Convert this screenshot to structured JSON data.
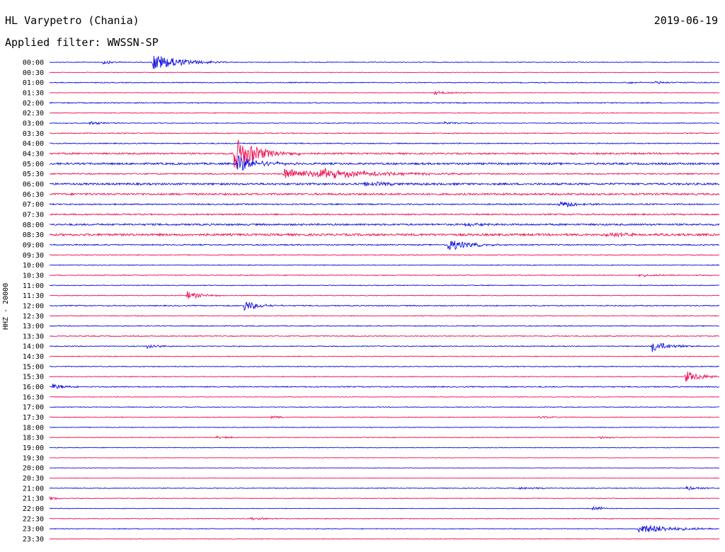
{
  "header": {
    "station": "HL Varypetro (Chania)",
    "date": "2019-06-19",
    "filter": "Applied filter: WWSSN-SP"
  },
  "chart_data": {
    "type": "line",
    "title": "HL Varypetro (Chania)",
    "subtitle": "Applied filter: WWSSN-SP",
    "ylabel": "HHZ - 20000",
    "row_interval_minutes": 30,
    "colors": [
      "#1010e0",
      "#ee1155"
    ],
    "rows": [
      {
        "label": "00:00",
        "noise": 1.0,
        "events": [
          {
            "t": 0.08,
            "amp": 3,
            "dur": 0.015
          },
          {
            "t": 0.155,
            "amp": 12,
            "dur": 0.04
          }
        ]
      },
      {
        "label": "00:30",
        "noise": 0.7,
        "events": []
      },
      {
        "label": "01:00",
        "noise": 1.2,
        "events": [
          {
            "t": 0.86,
            "amp": 1.5,
            "dur": 0.015
          },
          {
            "t": 0.905,
            "amp": 2,
            "dur": 0.03
          }
        ]
      },
      {
        "label": "01:30",
        "noise": 0.8,
        "events": [
          {
            "t": 0.575,
            "amp": 2.5,
            "dur": 0.03
          }
        ]
      },
      {
        "label": "02:00",
        "noise": 1.3,
        "events": []
      },
      {
        "label": "02:30",
        "noise": 0.9,
        "events": []
      },
      {
        "label": "03:00",
        "noise": 1.0,
        "events": [
          {
            "t": 0.06,
            "amp": 2.5,
            "dur": 0.02
          },
          {
            "t": 0.59,
            "amp": 2,
            "dur": 0.02
          }
        ]
      },
      {
        "label": "03:30",
        "noise": 1.3,
        "events": []
      },
      {
        "label": "04:00",
        "noise": 1.4,
        "events": []
      },
      {
        "label": "04:30",
        "noise": 2.2,
        "events": [
          {
            "t": 0.275,
            "amp": 24,
            "dur": 0.035
          }
        ]
      },
      {
        "label": "05:00",
        "noise": 2.6,
        "events": [
          {
            "t": 0.28,
            "amp": 13,
            "dur": 0.03
          }
        ]
      },
      {
        "label": "05:30",
        "noise": 1.7,
        "events": [
          {
            "t": 0.35,
            "amp": 8,
            "dur": 0.06
          },
          {
            "t": 0.4,
            "amp": 7,
            "dur": 0.09
          }
        ]
      },
      {
        "label": "06:00",
        "noise": 2.6,
        "events": [
          {
            "t": 0.47,
            "amp": 3,
            "dur": 0.05
          }
        ]
      },
      {
        "label": "06:30",
        "noise": 2.6,
        "events": []
      },
      {
        "label": "07:00",
        "noise": 1.7,
        "events": [
          {
            "t": 0.76,
            "amp": 4,
            "dur": 0.04
          }
        ]
      },
      {
        "label": "07:30",
        "noise": 1.9,
        "events": []
      },
      {
        "label": "08:00",
        "noise": 2.4,
        "events": [
          {
            "t": 0.62,
            "amp": 3,
            "dur": 0.02
          }
        ]
      },
      {
        "label": "08:30",
        "noise": 3.0,
        "events": [
          {
            "t": 0.83,
            "amp": 3,
            "dur": 0.04
          }
        ]
      },
      {
        "label": "09:00",
        "noise": 1.6,
        "events": [
          {
            "t": 0.595,
            "amp": 9,
            "dur": 0.03
          }
        ]
      },
      {
        "label": "09:30",
        "noise": 1.1,
        "events": []
      },
      {
        "label": "10:00",
        "noise": 1.0,
        "events": []
      },
      {
        "label": "10:30",
        "noise": 1.2,
        "events": [
          {
            "t": 0.88,
            "amp": 2,
            "dur": 0.03
          }
        ]
      },
      {
        "label": "11:00",
        "noise": 1.1,
        "events": []
      },
      {
        "label": "11:30",
        "noise": 1.0,
        "events": [
          {
            "t": 0.205,
            "amp": 6,
            "dur": 0.02
          }
        ]
      },
      {
        "label": "12:00",
        "noise": 1.4,
        "events": [
          {
            "t": 0.29,
            "amp": 8,
            "dur": 0.02
          }
        ]
      },
      {
        "label": "12:30",
        "noise": 1.0,
        "events": []
      },
      {
        "label": "13:00",
        "noise": 1.2,
        "events": []
      },
      {
        "label": "13:30",
        "noise": 1.3,
        "events": []
      },
      {
        "label": "14:00",
        "noise": 1.2,
        "events": [
          {
            "t": 0.145,
            "amp": 4,
            "dur": 0.015
          },
          {
            "t": 0.9,
            "amp": 8,
            "dur": 0.025
          }
        ]
      },
      {
        "label": "14:30",
        "noise": 1.0,
        "events": []
      },
      {
        "label": "15:00",
        "noise": 1.2,
        "events": []
      },
      {
        "label": "15:30",
        "noise": 1.0,
        "events": [
          {
            "t": 0.95,
            "amp": 8,
            "dur": 0.025
          }
        ]
      },
      {
        "label": "16:00",
        "noise": 1.5,
        "events": [
          {
            "t": 0.005,
            "amp": 4,
            "dur": 0.02
          }
        ]
      },
      {
        "label": "16:30",
        "noise": 0.8,
        "events": []
      },
      {
        "label": "17:00",
        "noise": 1.0,
        "events": []
      },
      {
        "label": "17:30",
        "noise": 1.0,
        "events": [
          {
            "t": 0.33,
            "amp": 2,
            "dur": 0.02
          },
          {
            "t": 0.73,
            "amp": 2,
            "dur": 0.02
          }
        ]
      },
      {
        "label": "18:00",
        "noise": 1.0,
        "events": []
      },
      {
        "label": "18:30",
        "noise": 0.9,
        "events": [
          {
            "t": 0.25,
            "amp": 2,
            "dur": 0.02
          },
          {
            "t": 0.82,
            "amp": 2,
            "dur": 0.02
          }
        ]
      },
      {
        "label": "19:00",
        "noise": 0.9,
        "events": []
      },
      {
        "label": "19:30",
        "noise": 0.6,
        "events": []
      },
      {
        "label": "20:00",
        "noise": 0.6,
        "events": []
      },
      {
        "label": "20:30",
        "noise": 0.6,
        "events": []
      },
      {
        "label": "21:00",
        "noise": 1.0,
        "events": [
          {
            "t": 0.7,
            "amp": 2,
            "dur": 0.03
          },
          {
            "t": 0.95,
            "amp": 3,
            "dur": 0.02
          }
        ]
      },
      {
        "label": "21:30",
        "noise": 0.9,
        "events": [
          {
            "t": 0.0,
            "amp": 3,
            "dur": 0.015
          }
        ]
      },
      {
        "label": "22:00",
        "noise": 0.8,
        "events": [
          {
            "t": 0.81,
            "amp": 4,
            "dur": 0.015
          }
        ]
      },
      {
        "label": "22:30",
        "noise": 1.0,
        "events": [
          {
            "t": 0.3,
            "amp": 2,
            "dur": 0.03
          }
        ]
      },
      {
        "label": "23:00",
        "noise": 1.0,
        "events": [
          {
            "t": 0.88,
            "amp": 7,
            "dur": 0.05
          }
        ]
      },
      {
        "label": "23:30",
        "noise": 0.8,
        "events": []
      }
    ]
  }
}
